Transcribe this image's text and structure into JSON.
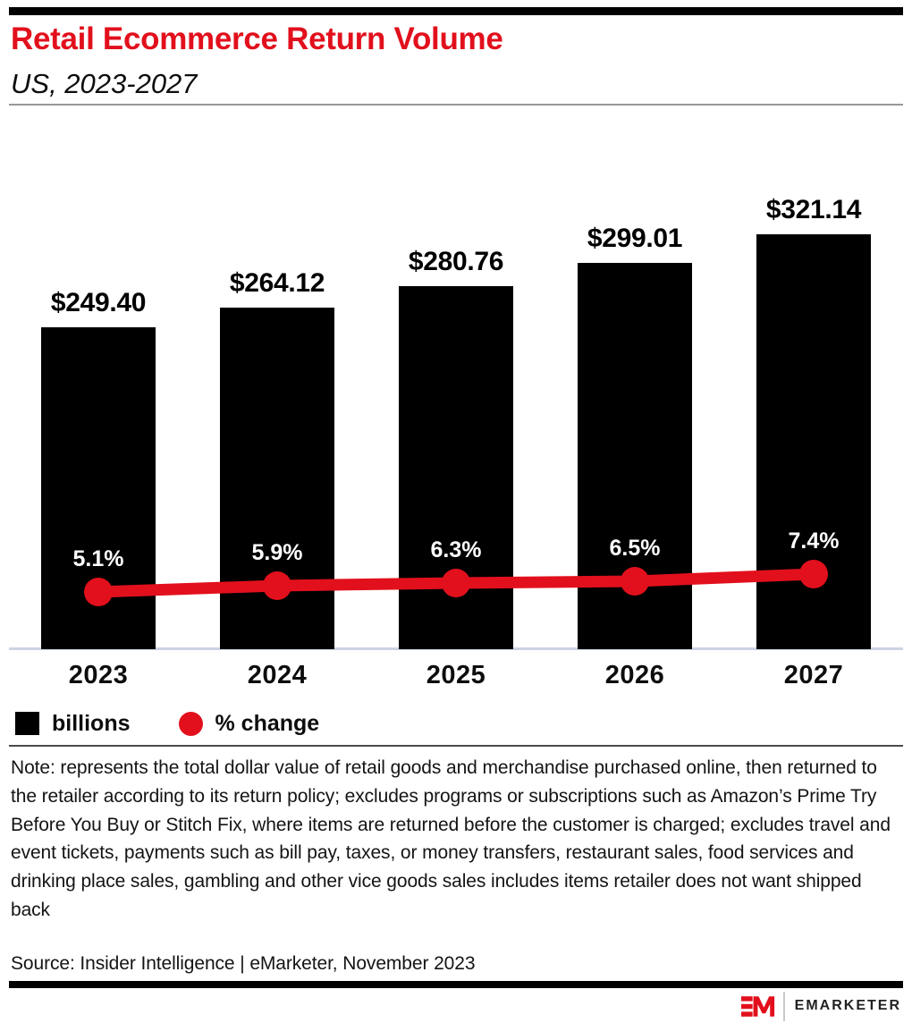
{
  "header": {
    "title": "Retail Ecommerce Return Volume",
    "subtitle": "US, 2023-2027"
  },
  "chart_data": {
    "type": "combo-bar-line",
    "title": "Retail Ecommerce Return Volume",
    "subtitle": "US, 2023-2027",
    "categories": [
      "2023",
      "2024",
      "2025",
      "2026",
      "2027"
    ],
    "series": [
      {
        "name": "billions",
        "type": "bar",
        "color": "#000000",
        "values": [
          249.4,
          264.12,
          280.76,
          299.01,
          321.14
        ],
        "labels": [
          "$249.40",
          "$264.12",
          "$280.76",
          "$299.01",
          "$321.14"
        ]
      },
      {
        "name": "% change",
        "type": "line",
        "color": "#e2101c",
        "values": [
          5.1,
          5.9,
          6.3,
          6.5,
          7.4
        ],
        "labels": [
          "5.1%",
          "5.9%",
          "6.3%",
          "6.5%",
          "7.4%"
        ]
      }
    ],
    "ylim_bars": [
      0,
      321.14
    ],
    "grid": false,
    "axis_line_color": "#ccd4e3",
    "legend_position": "bottom-left"
  },
  "legend": {
    "items": [
      {
        "label": "billions",
        "swatch": "square",
        "color": "#000000"
      },
      {
        "label": "% change",
        "swatch": "circle",
        "color": "#e2101c"
      }
    ]
  },
  "note": "Note: represents the total dollar value of retail goods and merchandise purchased online, then returned to the retailer according to its return policy; excludes programs or subscriptions such as Amazon’s Prime Try Before You Buy or Stitch Fix, where items are returned before the customer is charged; excludes travel and event tickets, payments such as bill pay, taxes, or money transfers, restaurant sales, food services and drinking place sales, gambling and other vice goods sales includes items retailer does not want shipped back",
  "source": "Source: Insider Intelligence | eMarketer, November 2023",
  "footer": {
    "brand": "EMARKETER"
  },
  "colors": {
    "accent_red": "#e2101c",
    "bar_black": "#000000",
    "axis_line": "#ccd4e3"
  }
}
